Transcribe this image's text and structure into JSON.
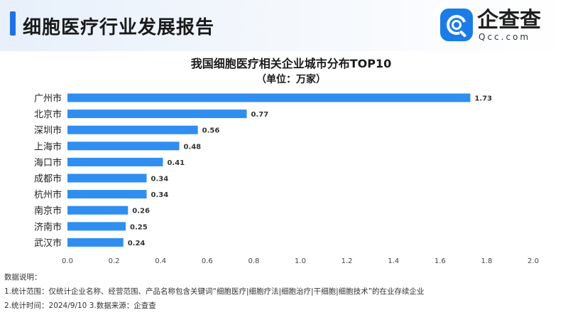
{
  "header": {
    "title": "细胞医疗行业发展报告",
    "logo_name": "企查查",
    "logo_sub": "Qcc.com"
  },
  "colors": {
    "bar": "#2f8ef0",
    "accent": "#1f6fe5",
    "brand": "#1b7ce6"
  },
  "chart_data": {
    "type": "bar",
    "orientation": "horizontal",
    "title": "我国细胞医疗相关企业城市分布TOP10",
    "subtitle": "（单位：万家）",
    "categories": [
      "广州市",
      "北京市",
      "深圳市",
      "上海市",
      "海口市",
      "成都市",
      "杭州市",
      "南京市",
      "济南市",
      "武汉市"
    ],
    "values": [
      1.73,
      0.77,
      0.56,
      0.48,
      0.41,
      0.34,
      0.34,
      0.26,
      0.25,
      0.24
    ],
    "value_labels": [
      "1.73",
      "0.77",
      "0.56",
      "0.48",
      "0.41",
      "0.34",
      "0.34",
      "0.26",
      "0.25",
      "0.24"
    ],
    "xlim": [
      0,
      2.0
    ],
    "x_ticks": [
      "0.0",
      "0.2",
      "0.4",
      "0.6",
      "0.8",
      "1.0",
      "1.2",
      "1.4",
      "1.6",
      "1.8",
      "2.0"
    ],
    "grid": false,
    "legend": "none"
  },
  "notes": {
    "heading": "数据说明：",
    "line1": "1.统计范围：仅统计企业名称、经营范围、产品名称包含关键词“细胞医疗|细胞疗法|细胞治疗|干细胞|细胞技术”的在业存续企业",
    "line2": "2.统计时间：2024/9/10    3.数据来源：企查查"
  }
}
